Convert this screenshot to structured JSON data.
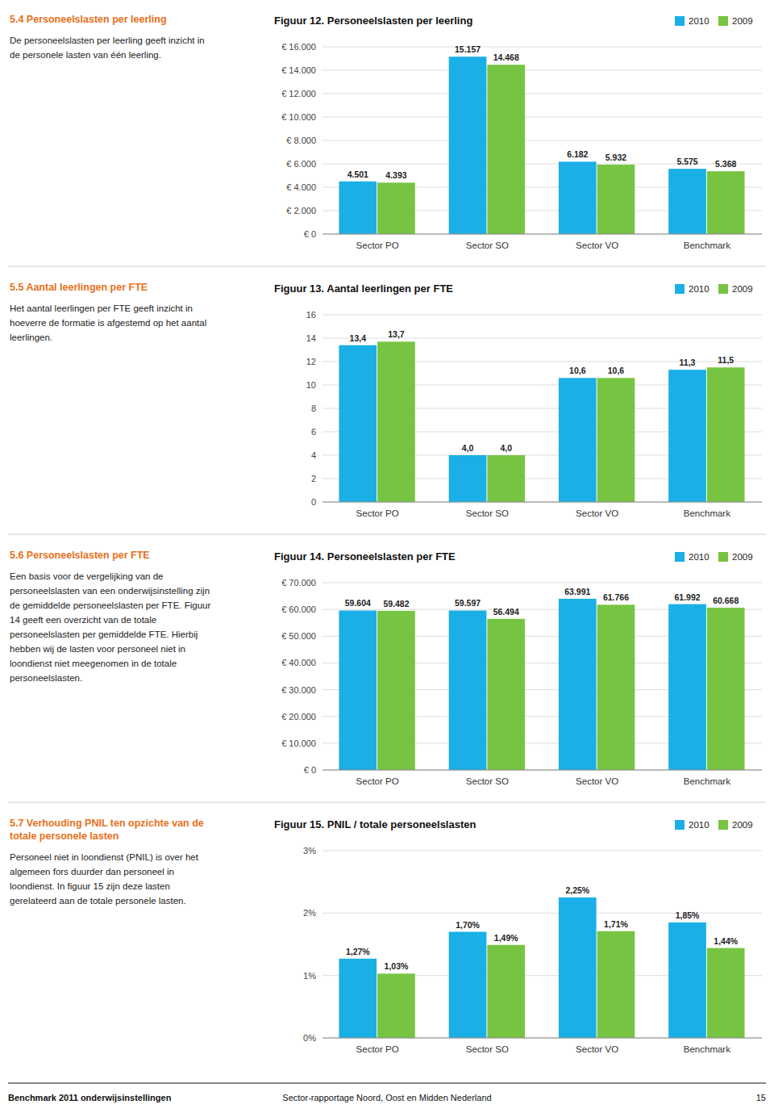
{
  "chart_data": [
    {
      "type": "bar",
      "title": "Figuur 12. Personeelslasten per leerling",
      "annotations": [
        "5.4 Personeelslasten per leerling",
        "De personeelslasten per leerling geeft inzicht in\nde personele lasten van één leerling."
      ],
      "categories": [
        "Sector PO",
        "Sector SO",
        "Sector VO",
        "Benchmark"
      ],
      "series": [
        {
          "name": "2010",
          "color": "#1AAFE6",
          "values": [
            4501,
            15157,
            6182,
            5575
          ],
          "value_labels": [
            "4.501",
            "15.157",
            "6.182",
            "5.575"
          ]
        },
        {
          "name": "2009",
          "color": "#77C442",
          "values": [
            4393,
            14468,
            5932,
            5368
          ],
          "value_labels": [
            "4.393",
            "14.468",
            "5.932",
            "5.368"
          ]
        }
      ],
      "ylim": [
        0,
        16000
      ],
      "yticks": [
        {
          "value": 0,
          "label": "€ 0"
        },
        {
          "value": 2000,
          "label": "€ 2.000"
        },
        {
          "value": 4000,
          "label": "€ 4.000"
        },
        {
          "value": 6000,
          "label": "€ 6.000"
        },
        {
          "value": 8000,
          "label": "€ 8.000"
        },
        {
          "value": 10000,
          "label": "€ 10.000"
        },
        {
          "value": 12000,
          "label": "€ 12.000"
        },
        {
          "value": 14000,
          "label": "€ 14.000"
        },
        {
          "value": 16000,
          "label": "€ 16.000"
        }
      ],
      "grid": true,
      "legend": "upper right",
      "data_labels": true
    },
    {
      "type": "bar",
      "title": "Figuur 13. Aantal leerlingen per FTE",
      "annotations": [
        "5.5 Aantal leerlingen per FTE",
        "Het aantal leerlingen per FTE geeft inzicht in\nhoeverre de formatie is afgestemd op het aantal\nleerlingen."
      ],
      "categories": [
        "Sector PO",
        "Sector SO",
        "Sector VO",
        "Benchmark"
      ],
      "series": [
        {
          "name": "2010",
          "color": "#1AAFE6",
          "values": [
            13.4,
            4.0,
            10.6,
            11.3
          ],
          "value_labels": [
            "13,4",
            "4,0",
            "10,6",
            "11,3"
          ]
        },
        {
          "name": "2009",
          "color": "#77C442",
          "values": [
            13.7,
            4.0,
            10.6,
            11.5
          ],
          "value_labels": [
            "13,7",
            "4,0",
            "10,6",
            "11,5"
          ]
        }
      ],
      "ylim": [
        0,
        16
      ],
      "yticks": [
        0,
        2,
        4,
        6,
        8,
        10,
        12,
        14,
        16
      ],
      "grid": true,
      "legend": "upper right",
      "data_labels": true
    },
    {
      "type": "bar",
      "title": "Figuur 14. Personeelslasten per FTE",
      "annotations": [
        "5.6 Personeelslasten per FTE",
        "Een basis voor de vergelijking van de\npersoneelslasten van een onderwijsinstelling zijn\nde gemiddelde personeelslasten per FTE. Figuur\n14 geeft een overzicht van de totale\npersoneelslasten per gemiddelde FTE. Hierbij\nhebben wij de lasten voor personeel niet in\nloondienst niet meegenomen in de totale\npersoneelslasten."
      ],
      "categories": [
        "Sector PO",
        "Sector SO",
        "Sector VO",
        "Benchmark"
      ],
      "series": [
        {
          "name": "2010",
          "color": "#1AAFE6",
          "values": [
            59604,
            59597,
            63991,
            61992
          ],
          "value_labels": [
            "59.604",
            "59.597",
            "63.991",
            "61.992"
          ]
        },
        {
          "name": "2009",
          "color": "#77C442",
          "values": [
            59482,
            56494,
            61766,
            60668
          ],
          "value_labels": [
            "59.482",
            "56.494",
            "61.766",
            "60.668"
          ]
        }
      ],
      "ylim": [
        0,
        70000
      ],
      "yticks": [
        {
          "value": 0,
          "label": "€ 0"
        },
        {
          "value": 10000,
          "label": "€ 10.000"
        },
        {
          "value": 20000,
          "label": "€ 20.000"
        },
        {
          "value": 30000,
          "label": "€ 30.000"
        },
        {
          "value": 40000,
          "label": "€ 40.000"
        },
        {
          "value": 50000,
          "label": "€ 50.000"
        },
        {
          "value": 60000,
          "label": "€ 60.000"
        },
        {
          "value": 70000,
          "label": "€ 70.000"
        }
      ],
      "grid": true,
      "legend": "upper right",
      "data_labels": true
    },
    {
      "type": "bar",
      "title": "Figuur 15. PNIL / totale personeelslasten",
      "annotations": [
        "5.7 Verhouding PNIL ten opzichte van de",
        "totale personele lasten",
        "Personeel niet in loondienst (PNIL) is over het\nalgemeen fors duurder dan personeel in\nloondienst. In figuur 15 zijn deze lasten\ngerelateerd aan de totale personele lasten."
      ],
      "categories": [
        "Sector PO",
        "Sector SO",
        "Sector VO",
        "Benchmark"
      ],
      "series": [
        {
          "name": "2010",
          "color": "#1AAFE6",
          "values": [
            0.0127,
            0.017,
            0.0225,
            0.0185
          ],
          "value_labels": [
            "1,27%",
            "1,70%",
            "2,25%",
            "1,85%"
          ]
        },
        {
          "name": "2009",
          "color": "#77C442",
          "values": [
            0.0103,
            0.0149,
            0.0171,
            0.0144
          ],
          "value_labels": [
            "1,03%",
            "1,49%",
            "1,71%",
            "1,44%"
          ]
        }
      ],
      "ylim": [
        0,
        0.03
      ],
      "yticks": [
        {
          "value": 0,
          "label": "0%"
        },
        {
          "value": 0.01,
          "label": "1%"
        },
        {
          "value": 0.02,
          "label": "2%"
        },
        {
          "value": 0.03,
          "label": "3%"
        }
      ],
      "grid": true,
      "legend": "upper right",
      "data_labels": true
    }
  ],
  "footer": [
    "Benchmark 2011 onderwijsinstellingen",
    "Sector-rapportage Noord, Oost en Midden Nederland",
    "15"
  ]
}
